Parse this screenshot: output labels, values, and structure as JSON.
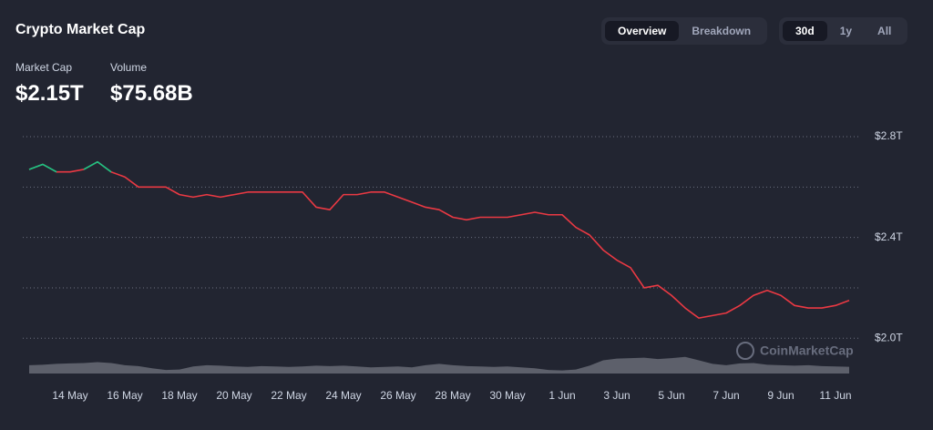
{
  "header": {
    "title": "Crypto Market Cap",
    "tabs": [
      "Overview",
      "Breakdown"
    ],
    "active_tab": 0,
    "ranges": [
      "30d",
      "1y",
      "All"
    ],
    "active_range": 0,
    "stats": [
      {
        "label": "Market Cap",
        "value": "$2.15T"
      },
      {
        "label": "Volume",
        "value": "$75.68B"
      }
    ]
  },
  "watermark": "CoinMarketCap",
  "chart_data": {
    "type": "line",
    "categories": [
      null,
      null,
      null,
      "14 May",
      null,
      null,
      null,
      "16 May",
      null,
      null,
      null,
      "18 May",
      null,
      null,
      null,
      "20 May",
      null,
      null,
      null,
      "22 May",
      null,
      null,
      null,
      "24 May",
      null,
      null,
      null,
      "26 May",
      null,
      null,
      null,
      "28 May",
      null,
      null,
      null,
      "30 May",
      null,
      null,
      null,
      "1 Jun",
      null,
      null,
      null,
      "3 Jun",
      null,
      null,
      null,
      "5 Jun",
      null,
      null,
      null,
      "7 Jun",
      null,
      null,
      null,
      "9 Jun",
      null,
      null,
      null,
      "11 Jun",
      null
    ],
    "series": [
      {
        "color": "#ea3943",
        "values": [
          2.67,
          2.69,
          2.66,
          2.66,
          2.67,
          2.7,
          2.66,
          2.64,
          2.6,
          2.6,
          2.6,
          2.57,
          2.56,
          2.57,
          2.56,
          2.57,
          2.58,
          2.58,
          2.58,
          2.58,
          2.58,
          2.52,
          2.51,
          2.57,
          2.57,
          2.58,
          2.58,
          2.56,
          2.54,
          2.52,
          2.51,
          2.48,
          2.47,
          2.48,
          2.48,
          2.48,
          2.49,
          2.5,
          2.49,
          2.49,
          2.44,
          2.41,
          2.35,
          2.31,
          2.28,
          2.2,
          2.21,
          2.17,
          2.12,
          2.08,
          2.09,
          2.1,
          2.13,
          2.17,
          2.19,
          2.17,
          2.13,
          2.12,
          2.12,
          2.13,
          2.15
        ]
      },
      {
        "color": "#16c784",
        "values": [
          2.67,
          2.69,
          2.66,
          null,
          2.67,
          2.7,
          2.66,
          null,
          null,
          null,
          null,
          null,
          null,
          null,
          null,
          null,
          null,
          null,
          null,
          null,
          null,
          null,
          null,
          null,
          null,
          null,
          null,
          null,
          null,
          null,
          null,
          null,
          null,
          null,
          null,
          null,
          null,
          null,
          null,
          null,
          null,
          null,
          null,
          null,
          null,
          null,
          null,
          null,
          null,
          null,
          null,
          null,
          null,
          null,
          null,
          null,
          null,
          null,
          null,
          null,
          null
        ]
      },
      {
        "color": "#5d606b",
        "axis": "y2",
        "values": [
          95,
          100,
          110,
          115,
          120,
          130,
          120,
          95,
          85,
          60,
          40,
          45,
          80,
          95,
          90,
          80,
          75,
          85,
          80,
          75,
          80,
          90,
          85,
          90,
          80,
          70,
          75,
          80,
          70,
          95,
          110,
          95,
          85,
          80,
          75,
          80,
          70,
          60,
          40,
          35,
          45,
          90,
          150,
          170,
          175,
          180,
          165,
          175,
          190,
          150,
          110,
          95,
          115,
          120,
          100,
          95,
          90,
          95,
          85,
          80,
          76
        ]
      }
    ],
    "ylim": [
      1.86,
      2.8
    ],
    "yticks": [
      {
        "value": 2.0,
        "label": "$2.0T"
      },
      {
        "value": 2.4,
        "label": "$2.4T"
      },
      {
        "value": 2.8,
        "label": "$2.8T"
      }
    ],
    "grid_lines": [
      2.0,
      2.2,
      2.4,
      2.6,
      2.8
    ],
    "y2lim": [
      0,
      2700
    ],
    "grid": true
  }
}
